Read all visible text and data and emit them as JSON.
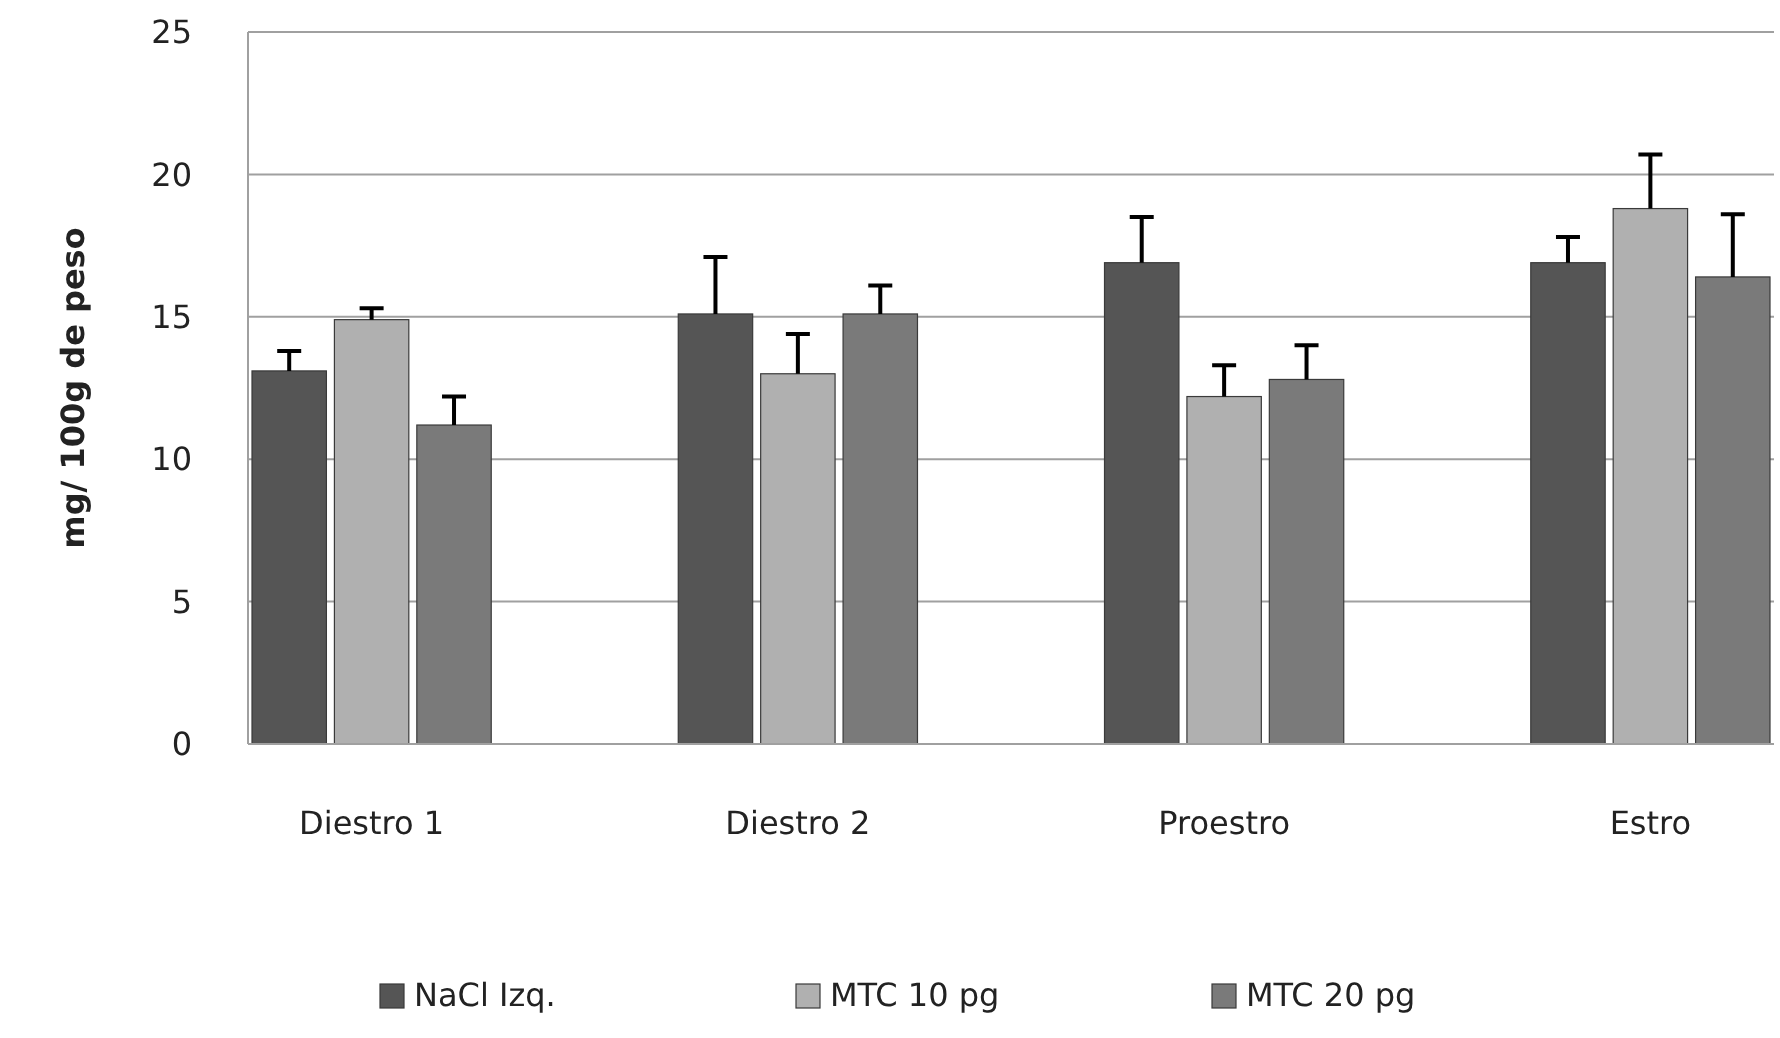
{
  "chart_data": {
    "type": "bar",
    "ylabel": "mg/ 100g de peso",
    "categories": [
      "Diestro 1",
      "Diestro 2",
      "Proestro",
      "Estro"
    ],
    "series": [
      {
        "name": "NaCl Izq.",
        "color": "#555555",
        "values": [
          13.1,
          15.1,
          16.9,
          16.9
        ],
        "errors": [
          [
            13.1,
            13.8
          ],
          [
            15.1,
            17.1
          ],
          [
            16.9,
            18.5
          ],
          [
            16.9,
            17.8
          ]
        ]
      },
      {
        "name": "MTC 10 pg",
        "color": "#b0b0b0",
        "values": [
          14.9,
          13.0,
          12.2,
          18.8
        ],
        "errors": [
          [
            14.9,
            15.3
          ],
          [
            13.0,
            14.4
          ],
          [
            12.2,
            13.3
          ],
          [
            18.8,
            20.7
          ]
        ]
      },
      {
        "name": "MTC 20 pg",
        "color": "#7a7a7a",
        "values": [
          11.2,
          15.1,
          12.8,
          16.4
        ],
        "errors": [
          [
            11.2,
            12.2
          ],
          [
            15.1,
            16.1
          ],
          [
            12.8,
            14.0
          ],
          [
            16.4,
            18.6
          ]
        ]
      }
    ],
    "ylim": [
      0,
      25
    ],
    "yticks": [
      0,
      5,
      10,
      15,
      20,
      25
    ],
    "grid": "y",
    "legend": "bottom"
  }
}
